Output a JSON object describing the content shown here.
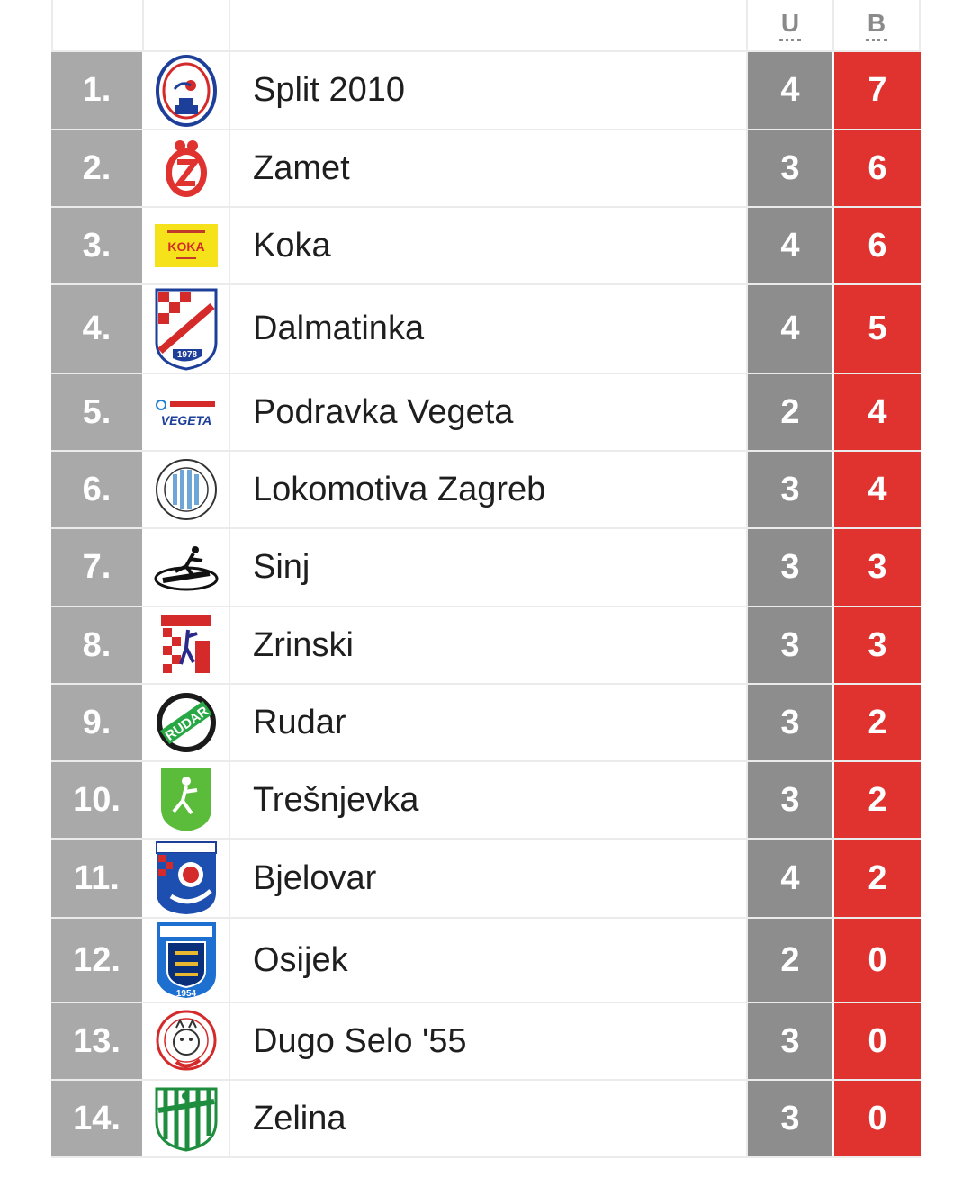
{
  "header": {
    "col_u": "U",
    "col_b": "B"
  },
  "colors": {
    "rank_bg": "#a9a9a9",
    "u_bg": "#8d8d8d",
    "b_bg": "#e0322f"
  },
  "rows": [
    {
      "rank": "1.",
      "team": "Split 2010",
      "u": "4",
      "b": "7",
      "logo": "split-2010-logo-icon"
    },
    {
      "rank": "2.",
      "team": "Zamet",
      "u": "3",
      "b": "6",
      "logo": "zamet-logo-icon"
    },
    {
      "rank": "3.",
      "team": "Koka",
      "u": "4",
      "b": "6",
      "logo": "koka-logo-icon",
      "logo_text": "KOKA"
    },
    {
      "rank": "4.",
      "team": "Dalmatinka",
      "u": "4",
      "b": "5",
      "logo": "dalmatinka-logo-icon",
      "logo_text": "1978"
    },
    {
      "rank": "5.",
      "team": "Podravka Vegeta",
      "u": "2",
      "b": "4",
      "logo": "podravka-vegeta-logo-icon",
      "logo_text": "VEGETA"
    },
    {
      "rank": "6.",
      "team": "Lokomotiva Zagreb",
      "u": "3",
      "b": "4",
      "logo": "lokomotiva-zagreb-logo-icon"
    },
    {
      "rank": "7.",
      "team": "Sinj",
      "u": "3",
      "b": "3",
      "logo": "sinj-logo-icon"
    },
    {
      "rank": "8.",
      "team": "Zrinski",
      "u": "3",
      "b": "3",
      "logo": "zrinski-logo-icon"
    },
    {
      "rank": "9.",
      "team": "Rudar",
      "u": "3",
      "b": "2",
      "logo": "rudar-logo-icon",
      "logo_text": "RUDAR"
    },
    {
      "rank": "10.",
      "team": "Trešnjevka",
      "u": "3",
      "b": "2",
      "logo": "tresnjevka-logo-icon"
    },
    {
      "rank": "11.",
      "team": "Bjelovar",
      "u": "4",
      "b": "2",
      "logo": "bjelovar-logo-icon"
    },
    {
      "rank": "12.",
      "team": "Osijek",
      "u": "2",
      "b": "0",
      "logo": "osijek-logo-icon",
      "logo_text": "1954"
    },
    {
      "rank": "13.",
      "team": "Dugo Selo '55",
      "u": "3",
      "b": "0",
      "logo": "dugo-selo-logo-icon"
    },
    {
      "rank": "14.",
      "team": "Zelina",
      "u": "3",
      "b": "0",
      "logo": "zelina-logo-icon"
    }
  ]
}
